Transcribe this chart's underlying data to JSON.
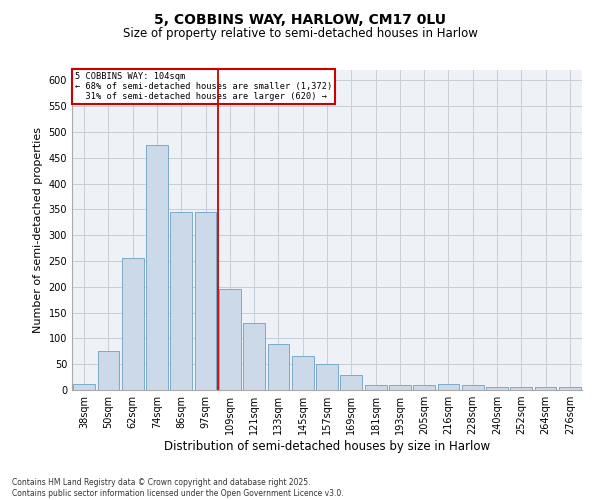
{
  "title": "5, COBBINS WAY, HARLOW, CM17 0LU",
  "subtitle": "Size of property relative to semi-detached houses in Harlow",
  "xlabel": "Distribution of semi-detached houses by size in Harlow",
  "ylabel": "Number of semi-detached properties",
  "categories": [
    "38sqm",
    "50sqm",
    "62sqm",
    "74sqm",
    "86sqm",
    "97sqm",
    "109sqm",
    "121sqm",
    "133sqm",
    "145sqm",
    "157sqm",
    "169sqm",
    "181sqm",
    "193sqm",
    "205sqm",
    "216sqm",
    "228sqm",
    "240sqm",
    "252sqm",
    "264sqm",
    "276sqm"
  ],
  "values": [
    12,
    75,
    255,
    475,
    345,
    345,
    195,
    130,
    90,
    65,
    50,
    30,
    10,
    10,
    10,
    12,
    10,
    5,
    5,
    5,
    5
  ],
  "bar_color": "#ccd9e8",
  "bar_edge_color": "#7aaac8",
  "vline_x": 6,
  "vline_color": "#cc0000",
  "annotation_text": "5 COBBINS WAY: 104sqm\n← 68% of semi-detached houses are smaller (1,372)\n  31% of semi-detached houses are larger (620) →",
  "annotation_box_color": "#cc0000",
  "ylim": [
    0,
    620
  ],
  "yticks": [
    0,
    50,
    100,
    150,
    200,
    250,
    300,
    350,
    400,
    450,
    500,
    550,
    600
  ],
  "footer": "Contains HM Land Registry data © Crown copyright and database right 2025.\nContains public sector information licensed under the Open Government Licence v3.0.",
  "bg_color": "#eef2f7",
  "grid_color": "#c5cdd8",
  "title_fontsize": 10,
  "subtitle_fontsize": 8.5,
  "axis_label_fontsize": 8,
  "tick_fontsize": 7,
  "footer_fontsize": 5.5
}
